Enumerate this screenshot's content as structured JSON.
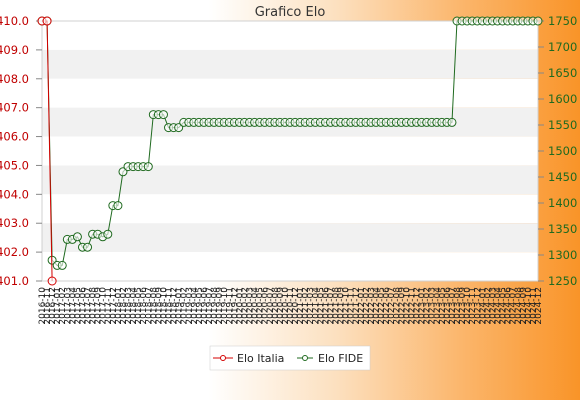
{
  "chart_data": {
    "type": "line",
    "title": "Grafico Elo",
    "x_labels": [
      "2016-10",
      "2016-11",
      "2016-12",
      "2017-01",
      "2017-02",
      "2017-03",
      "2017-04",
      "2017-05",
      "2017-06",
      "2017-07",
      "2017-08",
      "2017-09",
      "2017-10",
      "2017-11",
      "2017-12",
      "2018-01",
      "2018-02",
      "2018-03",
      "2018-04",
      "2018-05",
      "2018-06",
      "2018-07",
      "2018-08",
      "2018-09",
      "2018-10",
      "2018-11",
      "2018-12",
      "2019-01",
      "2019-02",
      "2019-03",
      "2019-04",
      "2019-05",
      "2019-06",
      "2019-07",
      "2019-08",
      "2019-09",
      "2019-10",
      "2019-11",
      "2019-12",
      "2020-01",
      "2020-02",
      "2020-03",
      "2020-04",
      "2020-05",
      "2020-06",
      "2020-07",
      "2020-08",
      "2020-09",
      "2020-10",
      "2020-11",
      "2020-12",
      "2021-01",
      "2021-02",
      "2021-03",
      "2021-04",
      "2021-05",
      "2021-06",
      "2021-07",
      "2021-08",
      "2021-09",
      "2021-10",
      "2021-11",
      "2021-12",
      "2022-01",
      "2022-02",
      "2022-03",
      "2022-04",
      "2022-05",
      "2022-06",
      "2022-07",
      "2022-08",
      "2022-09",
      "2022-10",
      "2022-11",
      "2022-12",
      "2023-01",
      "2023-02",
      "2023-03",
      "2023-04",
      "2023-05",
      "2023-06",
      "2023-07",
      "2023-08",
      "2023-09",
      "2023-10",
      "2023-11",
      "2023-12",
      "2024-01",
      "2024-02",
      "2024-03",
      "2024-04",
      "2024-05",
      "2024-06",
      "2024-07",
      "2024-08",
      "2024-09",
      "2024-10",
      "2024-11",
      "2024-12"
    ],
    "series": [
      {
        "name": "Elo Italia",
        "color": "#d40000",
        "axis": "left",
        "values": [
          410.0,
          410.0,
          401.0
        ]
      },
      {
        "name": "Elo FIDE",
        "color": "#1f6a1f",
        "axis": "right",
        "values": [
          1750,
          1750,
          1290,
          1280,
          1280,
          1330,
          1330,
          1335,
          1315,
          1315,
          1340,
          1340,
          1335,
          1340,
          1395,
          1395,
          1460,
          1470,
          1470,
          1470,
          1470,
          1470,
          1570,
          1570,
          1570,
          1545,
          1545,
          1545,
          1555,
          1555,
          1555,
          1555,
          1555,
          1555,
          1555,
          1555,
          1555,
          1555,
          1555,
          1555,
          1555,
          1555,
          1555,
          1555,
          1555,
          1555,
          1555,
          1555,
          1555,
          1555,
          1555,
          1555,
          1555,
          1555,
          1555,
          1555,
          1555,
          1555,
          1555,
          1555,
          1555,
          1555,
          1555,
          1555,
          1555,
          1555,
          1555,
          1555,
          1555,
          1555,
          1555,
          1555,
          1555,
          1555,
          1555,
          1555,
          1555,
          1555,
          1555,
          1555,
          1555,
          1555,
          1750,
          1750,
          1750,
          1750,
          1750,
          1750,
          1750,
          1750,
          1750,
          1750,
          1750,
          1750,
          1750,
          1750,
          1750,
          1750,
          1750
        ]
      }
    ],
    "y_left": {
      "range": [
        401.0,
        410.0
      ],
      "ticks": [
        "410.0",
        "409.0",
        "408.0",
        "407.0",
        "406.0",
        "405.0",
        "404.0",
        "403.0",
        "402.0",
        "401.0"
      ]
    },
    "y_right": {
      "range": [
        1250,
        1750
      ],
      "ticks": [
        "1750",
        "1700",
        "1650",
        "1600",
        "1550",
        "1500",
        "1450",
        "1400",
        "1350",
        "1300",
        "1250"
      ]
    },
    "grid": true,
    "legend_position": "bottom-center"
  }
}
